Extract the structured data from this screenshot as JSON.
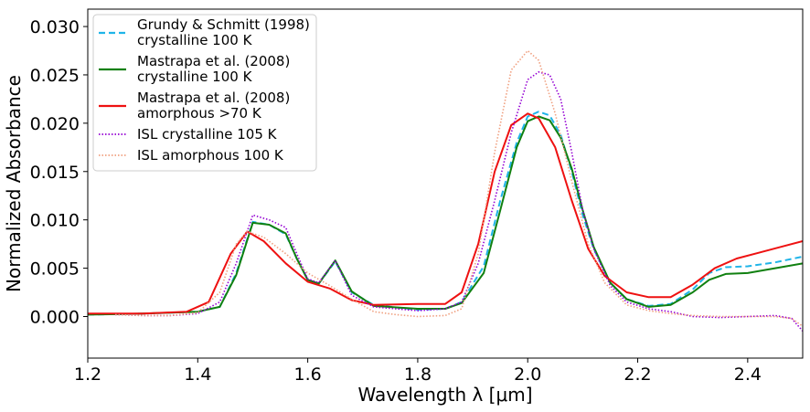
{
  "chart_data": {
    "type": "line",
    "title": "",
    "xlabel": "Wavelength λ [μm]",
    "ylabel": "Normalized Absorbance",
    "xlim": [
      1.2,
      2.5
    ],
    "ylim": [
      -0.0043,
      0.0318
    ],
    "grid": false,
    "legend_position": "top-left",
    "x_ticks": [
      {
        "value": 1.2,
        "label": "1.2"
      },
      {
        "value": 1.4,
        "label": "1.4"
      },
      {
        "value": 1.6,
        "label": "1.6"
      },
      {
        "value": 1.8,
        "label": "1.8"
      },
      {
        "value": 2.0,
        "label": "2.0"
      },
      {
        "value": 2.2,
        "label": "2.2"
      },
      {
        "value": 2.4,
        "label": "2.4"
      }
    ],
    "y_ticks": [
      {
        "value": 0.0,
        "label": "0.000"
      },
      {
        "value": 0.005,
        "label": "0.005"
      },
      {
        "value": 0.01,
        "label": "0.010"
      },
      {
        "value": 0.015,
        "label": "0.015"
      },
      {
        "value": 0.02,
        "label": "0.020"
      },
      {
        "value": 0.025,
        "label": "0.025"
      },
      {
        "value": 0.03,
        "label": "0.030"
      }
    ],
    "series": [
      {
        "name": "Grundy & Schmitt (1998) crystalline 100 K",
        "legend_lines": [
          "Grundy & Schmitt (1998)",
          "crystalline 100 K"
        ],
        "color": "#1fb4e8",
        "style": "dashed",
        "x": [
          1.2,
          1.3,
          1.4,
          1.44,
          1.47,
          1.5,
          1.53,
          1.56,
          1.58,
          1.6,
          1.62,
          1.65,
          1.68,
          1.72,
          1.8,
          1.85,
          1.88,
          1.92,
          1.95,
          1.98,
          2.0,
          2.02,
          2.04,
          2.06,
          2.08,
          2.1,
          2.12,
          2.15,
          2.18,
          2.22,
          2.26,
          2.3,
          2.33,
          2.36,
          2.4,
          2.45,
          2.5
        ],
        "y": [
          0.0002,
          0.0003,
          0.0005,
          0.001,
          0.0045,
          0.0098,
          0.0095,
          0.0085,
          0.006,
          0.0038,
          0.0034,
          0.0057,
          0.0025,
          0.0012,
          0.0007,
          0.0008,
          0.0015,
          0.0052,
          0.012,
          0.018,
          0.0207,
          0.0212,
          0.0208,
          0.0188,
          0.015,
          0.0105,
          0.007,
          0.0035,
          0.0018,
          0.0011,
          0.0013,
          0.0028,
          0.0045,
          0.0051,
          0.0052,
          0.0056,
          0.0062
        ]
      },
      {
        "name": "Mastrapa et al. (2008) crystalline 100 K",
        "legend_lines": [
          "Mastrapa et al. (2008)",
          "crystalline 100 K"
        ],
        "color": "#108010",
        "style": "solid",
        "x": [
          1.2,
          1.3,
          1.4,
          1.44,
          1.47,
          1.5,
          1.53,
          1.56,
          1.58,
          1.6,
          1.62,
          1.65,
          1.68,
          1.72,
          1.8,
          1.85,
          1.88,
          1.92,
          1.95,
          1.98,
          2.0,
          2.02,
          2.04,
          2.06,
          2.08,
          2.1,
          2.12,
          2.15,
          2.18,
          2.22,
          2.26,
          2.3,
          2.33,
          2.36,
          2.4,
          2.45,
          2.5
        ],
        "y": [
          0.0002,
          0.0003,
          0.0005,
          0.001,
          0.0043,
          0.0097,
          0.0095,
          0.0086,
          0.006,
          0.0038,
          0.0034,
          0.0058,
          0.0026,
          0.0011,
          0.0008,
          0.0008,
          0.0014,
          0.0045,
          0.011,
          0.0175,
          0.0202,
          0.0207,
          0.0203,
          0.0185,
          0.0153,
          0.011,
          0.0072,
          0.0035,
          0.0018,
          0.001,
          0.0012,
          0.0025,
          0.0038,
          0.0044,
          0.0045,
          0.005,
          0.0055
        ]
      },
      {
        "name": "Mastrapa et al. (2008) amorphous >70 K",
        "legend_lines": [
          "Mastrapa et al. (2008)",
          "amorphous >70 K"
        ],
        "color": "#ee1111",
        "style": "solid",
        "x": [
          1.2,
          1.3,
          1.38,
          1.42,
          1.46,
          1.49,
          1.52,
          1.56,
          1.6,
          1.64,
          1.68,
          1.72,
          1.8,
          1.85,
          1.88,
          1.91,
          1.94,
          1.97,
          2.0,
          2.02,
          2.05,
          2.08,
          2.11,
          2.14,
          2.18,
          2.22,
          2.26,
          2.3,
          2.34,
          2.38,
          2.42,
          2.46,
          2.5
        ],
        "y": [
          0.0003,
          0.0003,
          0.0005,
          0.0015,
          0.0065,
          0.0088,
          0.0078,
          0.0055,
          0.0036,
          0.0029,
          0.0017,
          0.0012,
          0.0013,
          0.0013,
          0.0025,
          0.0075,
          0.015,
          0.0198,
          0.021,
          0.0205,
          0.0175,
          0.012,
          0.007,
          0.0042,
          0.0025,
          0.002,
          0.002,
          0.0033,
          0.005,
          0.006,
          0.0066,
          0.0072,
          0.0078
        ]
      },
      {
        "name": "ISL crystalline 105 K",
        "legend_lines": [
          "ISL crystalline 105 K"
        ],
        "color": "#9400d3",
        "style": "dotted",
        "x": [
          1.25,
          1.3,
          1.35,
          1.4,
          1.44,
          1.47,
          1.5,
          1.53,
          1.56,
          1.58,
          1.6,
          1.62,
          1.65,
          1.68,
          1.72,
          1.8,
          1.85,
          1.88,
          1.91,
          1.94,
          1.97,
          2.0,
          2.02,
          2.04,
          2.06,
          2.08,
          2.1,
          2.12,
          2.15,
          2.18,
          2.22,
          2.26,
          2.3,
          2.35,
          2.4,
          2.45,
          2.48,
          2.5
        ],
        "y": [
          0.0002,
          0.0001,
          0.0001,
          0.0003,
          0.0015,
          0.0055,
          0.0105,
          0.01,
          0.0092,
          0.0065,
          0.0039,
          0.0035,
          0.0058,
          0.0022,
          0.001,
          0.0006,
          0.0008,
          0.0015,
          0.0055,
          0.012,
          0.019,
          0.0245,
          0.0253,
          0.025,
          0.0225,
          0.017,
          0.011,
          0.007,
          0.0032,
          0.0015,
          0.0008,
          0.0005,
          0.0,
          -0.0001,
          0.0,
          0.0001,
          -0.0002,
          -0.0015
        ]
      },
      {
        "name": "ISL amorphous 100 K",
        "legend_lines": [
          "ISL amorphous 100 K"
        ],
        "color": "#f0a080",
        "style": "dotted",
        "x": [
          1.25,
          1.3,
          1.35,
          1.4,
          1.44,
          1.47,
          1.49,
          1.52,
          1.56,
          1.6,
          1.64,
          1.68,
          1.72,
          1.76,
          1.8,
          1.85,
          1.88,
          1.91,
          1.94,
          1.97,
          2.0,
          2.02,
          2.05,
          2.08,
          2.11,
          2.14,
          2.18,
          2.22,
          2.26,
          2.3,
          2.35,
          2.4,
          2.45,
          2.48,
          2.5
        ],
        "y": [
          0.0002,
          0.0001,
          0.0001,
          0.0004,
          0.0025,
          0.0075,
          0.0088,
          0.0082,
          0.0065,
          0.0045,
          0.0032,
          0.0018,
          0.0005,
          0.0002,
          0.0,
          0.0001,
          0.0008,
          0.0065,
          0.017,
          0.0255,
          0.0275,
          0.0265,
          0.021,
          0.014,
          0.0075,
          0.0035,
          0.0012,
          0.0006,
          0.0003,
          0.0001,
          0.0,
          0.0,
          0.0,
          -0.0002,
          -0.001
        ]
      }
    ]
  }
}
